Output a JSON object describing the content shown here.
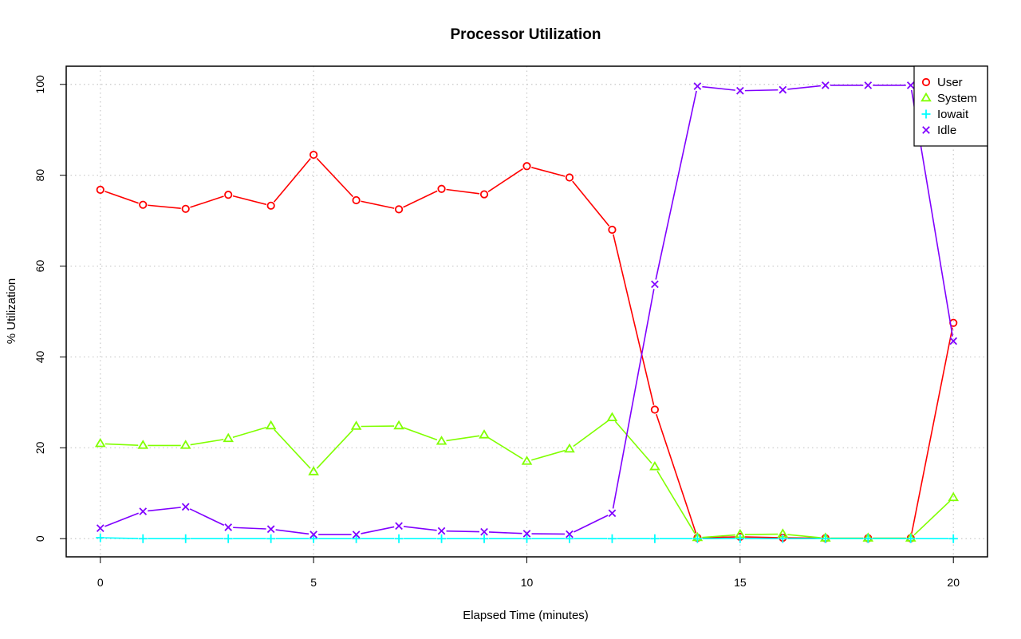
{
  "chart_data": {
    "type": "line",
    "title": "Processor Utilization",
    "xlabel": "Elapsed Time (minutes)",
    "ylabel": "% Utilization",
    "xlim": [
      -0.8,
      20.8
    ],
    "ylim": [
      -4,
      104
    ],
    "x_ticks": [
      0,
      5,
      10,
      15,
      20
    ],
    "y_ticks": [
      0,
      20,
      40,
      60,
      80,
      100
    ],
    "grid": true,
    "legend_position": "top-right",
    "x": [
      0,
      1,
      2,
      3,
      4,
      5,
      6,
      7,
      8,
      9,
      10,
      11,
      12,
      13,
      14,
      15,
      16,
      17,
      18,
      19,
      20
    ],
    "series": [
      {
        "name": "User",
        "color": "#ff0000",
        "marker": "circle",
        "values": [
          76.8,
          73.5,
          72.6,
          75.7,
          73.3,
          84.5,
          74.5,
          72.5,
          77.0,
          75.8,
          82.0,
          79.5,
          68.0,
          28.4,
          0.2,
          0.4,
          0.2,
          0.1,
          0.1,
          0.1,
          47.5
        ]
      },
      {
        "name": "System",
        "color": "#80ff00",
        "marker": "triangle",
        "values": [
          20.9,
          20.5,
          20.5,
          22.0,
          24.8,
          14.7,
          24.7,
          24.8,
          21.4,
          22.8,
          17.0,
          19.7,
          26.6,
          15.8,
          0.2,
          0.9,
          1.0,
          0.1,
          0.1,
          0.1,
          9.0
        ]
      },
      {
        "name": "Iowait",
        "color": "#00ffff",
        "marker": "plus",
        "values": [
          0.2,
          0.0,
          0.0,
          0.0,
          0.0,
          0.0,
          0.0,
          0.0,
          0.0,
          0.0,
          0.0,
          0.0,
          0.0,
          0.0,
          0.0,
          0.0,
          0.0,
          0.0,
          0.0,
          0.0,
          0.0
        ]
      },
      {
        "name": "Idle",
        "color": "#8000ff",
        "marker": "x",
        "values": [
          2.3,
          6.0,
          7.0,
          2.5,
          2.1,
          0.9,
          0.9,
          2.8,
          1.7,
          1.5,
          1.1,
          1.0,
          5.6,
          56.0,
          99.6,
          98.6,
          98.8,
          99.8,
          99.8,
          99.8,
          43.5
        ]
      }
    ]
  }
}
